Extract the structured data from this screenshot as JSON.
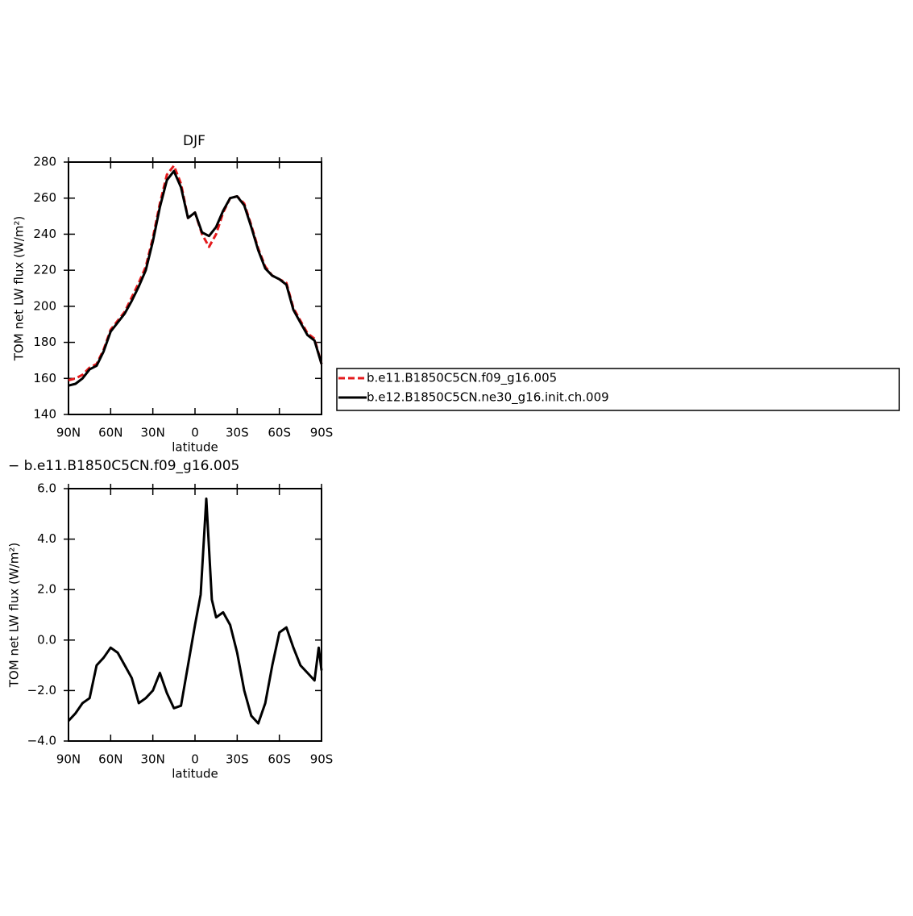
{
  "chart_data": [
    {
      "type": "line",
      "title": "DJF",
      "xlabel": "latitude",
      "ylabel": "TOM net LW flux (W/m²)",
      "x": [
        90,
        85,
        80,
        75,
        70,
        65,
        60,
        55,
        50,
        45,
        40,
        35,
        30,
        25,
        20,
        15,
        10,
        5,
        0,
        -5,
        -10,
        -15,
        -20,
        -25,
        -30,
        -35,
        -40,
        -45,
        -50,
        -55,
        -60,
        -65,
        -70,
        -75,
        -80,
        -85,
        -90
      ],
      "series": [
        {
          "name": "b.e11.B1850C5CN.f09_g16.005",
          "color": "#e41a1c",
          "dash": true,
          "values": [
            159,
            160,
            162,
            166,
            168,
            176,
            187,
            192,
            197,
            205,
            213,
            222,
            238,
            257,
            273,
            278,
            268,
            249,
            252,
            240,
            233,
            240,
            252,
            260,
            261,
            257,
            245,
            232,
            222,
            217,
            215,
            213,
            199,
            192,
            185,
            182,
            168
          ]
        },
        {
          "name": "b.e12.B1850C5CN.ne30_g16.init.ch.009",
          "color": "#000000",
          "dash": false,
          "values": [
            156,
            157,
            160,
            165,
            167,
            175,
            186,
            191,
            196,
            203,
            211,
            220,
            236,
            255,
            270,
            275,
            266,
            249,
            252,
            241,
            239,
            244,
            253,
            260,
            261,
            256,
            244,
            231,
            221,
            217,
            215,
            212,
            198,
            191,
            184,
            181,
            168
          ]
        }
      ],
      "xlim": [
        90,
        -90
      ],
      "xticks": [
        {
          "value": 90,
          "label": "90N"
        },
        {
          "value": 60,
          "label": "60N"
        },
        {
          "value": 30,
          "label": "30N"
        },
        0,
        {
          "value": -30,
          "label": "30S"
        },
        {
          "value": -60,
          "label": "60S"
        },
        {
          "value": -90,
          "label": "90S"
        }
      ],
      "ylim": [
        140,
        280
      ],
      "yticks": [
        140,
        160,
        180,
        200,
        220,
        240,
        260,
        280
      ],
      "legend": "right"
    },
    {
      "type": "line",
      "title": "− b.e11.B1850C5CN.f09_g16.005",
      "xlabel": "latitude",
      "ylabel": "TOM net LW flux (W/m²)",
      "x": [
        90,
        85,
        80,
        75,
        70,
        65,
        60,
        55,
        50,
        45,
        40,
        35,
        30,
        25,
        20,
        15,
        10,
        5,
        0,
        -4,
        -8,
        -12,
        -15,
        -20,
        -25,
        -30,
        -35,
        -40,
        -45,
        -50,
        -55,
        -60,
        -65,
        -70,
        -75,
        -80,
        -85,
        -88,
        -90
      ],
      "series": [
        {
          "color": "#000000",
          "dash": false,
          "values": [
            -3.2,
            -2.9,
            -2.5,
            -2.3,
            -1.0,
            -0.7,
            -0.3,
            -0.5,
            -1.0,
            -1.5,
            -2.5,
            -2.3,
            -2.0,
            -1.3,
            -2.1,
            -2.7,
            -2.6,
            -1.0,
            0.6,
            1.8,
            5.6,
            1.6,
            0.9,
            1.1,
            0.6,
            -0.5,
            -2.0,
            -3.0,
            -3.3,
            -2.5,
            -1.0,
            0.3,
            0.5,
            -0.3,
            -1.0,
            -1.3,
            -1.6,
            -0.3,
            -1.2
          ]
        }
      ],
      "xlim": [
        90,
        -90
      ],
      "xticks": [
        {
          "value": 90,
          "label": "90N"
        },
        {
          "value": 60,
          "label": "60N"
        },
        {
          "value": 30,
          "label": "30N"
        },
        0,
        {
          "value": -30,
          "label": "30S"
        },
        {
          "value": -60,
          "label": "60S"
        },
        {
          "value": -90,
          "label": "90S"
        }
      ],
      "ylim": [
        -4,
        6
      ],
      "yticks": [
        {
          "value": -4,
          "label": "−4.0"
        },
        {
          "value": -2,
          "label": "−2.0"
        },
        {
          "value": 0,
          "label": "0.0"
        },
        {
          "value": 2,
          "label": "2.0"
        },
        {
          "value": 4,
          "label": "4.0"
        },
        {
          "value": 6,
          "label": "6.0"
        }
      ]
    }
  ]
}
